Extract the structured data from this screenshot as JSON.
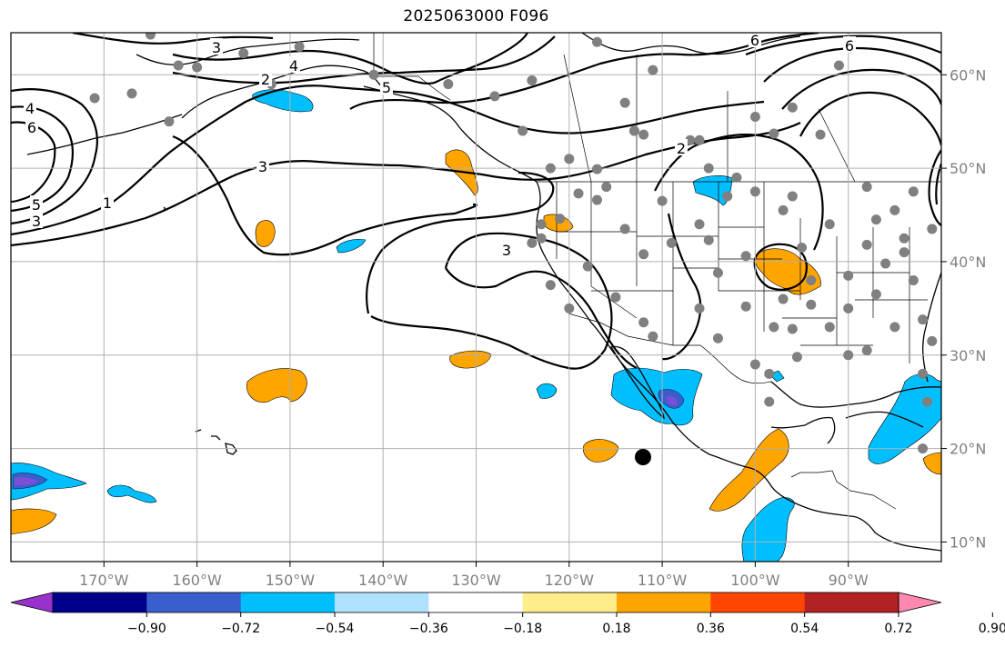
{
  "title": "2025063000 F096",
  "map": {
    "lon_range": [
      -180,
      -80
    ],
    "lat_range": [
      7.9,
      64.5
    ],
    "lon_ticks": [
      {
        "label": "170°W"
      },
      {
        "label": "160°W"
      },
      {
        "label": "150°W"
      },
      {
        "label": "140°W"
      },
      {
        "label": "130°W"
      },
      {
        "label": "120°W"
      },
      {
        "label": "110°W"
      },
      {
        "label": "100°W"
      },
      {
        "label": "90°W"
      }
    ],
    "lat_ticks": [
      {
        "label": "60°N"
      },
      {
        "label": "50°N"
      },
      {
        "label": "40°N"
      },
      {
        "label": "30°N"
      },
      {
        "label": "20°N"
      },
      {
        "label": "10°N"
      }
    ],
    "contour_labels": [
      "1",
      "2",
      "3",
      "4",
      "5",
      "6"
    ],
    "contour_label_marks": [
      {
        "t": "3"
      },
      {
        "t": "4"
      },
      {
        "t": "5"
      },
      {
        "t": "2"
      },
      {
        "t": "6"
      },
      {
        "t": "4"
      },
      {
        "t": "6"
      },
      {
        "t": "5"
      },
      {
        "t": "3"
      },
      {
        "t": "1"
      },
      {
        "t": "3"
      },
      {
        "t": "3"
      },
      {
        "t": "2"
      },
      {
        "t": "6"
      }
    ],
    "colors": {
      "grid": "#b0b0b0",
      "station_dot": "#808080",
      "contour": "#000000",
      "coast": "#000000",
      "orange": "#ffa500",
      "light_blue": "#00bfff",
      "mid_blue": "#3a5fcd",
      "purple": "#7b4fd6"
    }
  },
  "colorbar": {
    "tick_labels": [
      "−0.90",
      "−0.72",
      "−0.54",
      "−0.36",
      "−0.18",
      "0.18",
      "0.36",
      "0.54",
      "0.72",
      "0.90"
    ],
    "colors": [
      "#9932cc",
      "#00008b",
      "#3a5fcd",
      "#00bfff",
      "#b0e2ff",
      "#ffffff",
      "#ffec8b",
      "#ffa500",
      "#ff4500",
      "#b22222",
      "#ff88b0"
    ]
  }
}
